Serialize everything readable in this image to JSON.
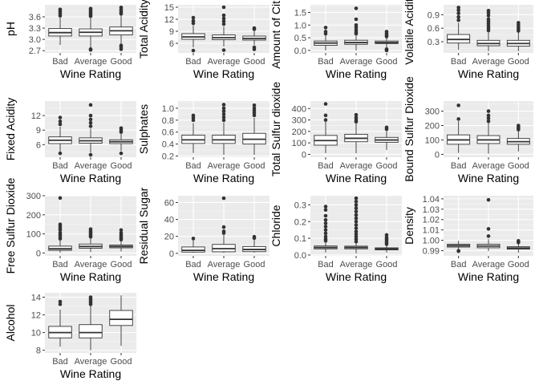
{
  "chart_data": [
    {
      "type": "box",
      "ylabel": "pH",
      "xlabel": "Wine Rating",
      "categories": [
        "Bad",
        "Average",
        "Good"
      ],
      "ylim": [
        2.64,
        3.92
      ],
      "yticks": [
        2.7,
        3.0,
        3.3,
        3.6
      ],
      "ytick_labels": [
        "2.7",
        "3.0",
        "3.3",
        "3.6"
      ],
      "boxes": [
        {
          "whisker_low": 2.85,
          "q1": 3.09,
          "median": 3.18,
          "q3": 3.29,
          "whisker_high": 3.58,
          "outliers": [
            3.63,
            3.69,
            3.75,
            3.8
          ]
        },
        {
          "whisker_low": 2.79,
          "q1": 3.09,
          "median": 3.19,
          "q3": 3.28,
          "whisker_high": 3.57,
          "outliers": [
            2.72,
            2.74,
            3.62,
            3.66,
            3.7,
            3.74,
            3.78,
            3.82
          ]
        },
        {
          "whisker_low": 2.88,
          "q1": 3.12,
          "median": 3.23,
          "q3": 3.33,
          "whisker_high": 3.64,
          "outliers": [
            2.74,
            2.8,
            2.84,
            3.68,
            3.72,
            3.76,
            3.8,
            3.85
          ]
        }
      ]
    },
    {
      "type": "box",
      "ylabel": "Total Acidity",
      "xlabel": "Wine Rating",
      "categories": [
        "Bad",
        "Average",
        "Good"
      ],
      "ylim": [
        3.6,
        15.6
      ],
      "yticks": [
        6,
        9,
        12,
        15
      ],
      "ytick_labels": [
        "6",
        "9",
        "12",
        "15"
      ],
      "boxes": [
        {
          "whisker_low": 5.0,
          "q1": 7.0,
          "median": 7.6,
          "q3": 8.4,
          "whisker_high": 10.5,
          "outliers": [
            4.2,
            11.0,
            11.6,
            12.4
          ]
        },
        {
          "whisker_low": 5.2,
          "q1": 6.9,
          "median": 7.4,
          "q3": 8.1,
          "whisker_high": 10.2,
          "outliers": [
            4.3,
            10.8,
            11.5,
            12.2,
            13.0,
            15.0
          ]
        },
        {
          "whisker_low": 5.6,
          "q1": 6.8,
          "median": 7.2,
          "q3": 7.8,
          "whisker_high": 9.0,
          "outliers": [
            4.5,
            5.0,
            9.5,
            9.8
          ]
        }
      ]
    },
    {
      "type": "box",
      "ylabel": "Amount of Citric",
      "xlabel": "Wine Rating",
      "categories": [
        "Bad",
        "Average",
        "Good"
      ],
      "ylim": [
        -0.1,
        1.8
      ],
      "yticks": [
        0.0,
        0.5,
        1.0,
        1.5
      ],
      "ytick_labels": [
        "0.0",
        "0.5",
        "1.0",
        "1.5"
      ],
      "boxes": [
        {
          "whisker_low": 0.0,
          "q1": 0.2,
          "median": 0.29,
          "q3": 0.37,
          "whisker_high": 0.6,
          "outliers": [
            0.66,
            0.74,
            0.9
          ]
        },
        {
          "whisker_low": 0.0,
          "q1": 0.24,
          "median": 0.31,
          "q3": 0.4,
          "whisker_high": 0.62,
          "outliers": [
            0.66,
            0.72,
            0.8,
            0.9,
            1.0,
            1.23,
            1.66
          ]
        },
        {
          "whisker_low": 0.09,
          "q1": 0.27,
          "median": 0.31,
          "q3": 0.37,
          "whisker_high": 0.5,
          "outliers": [
            0.0,
            0.02,
            0.05,
            0.55,
            0.6,
            0.66,
            0.74
          ]
        }
      ]
    },
    {
      "type": "box",
      "ylabel": "Volatile Acidity",
      "xlabel": "Wine Rating",
      "categories": [
        "Bad",
        "Average",
        "Good"
      ],
      "ylim": [
        0.05,
        1.12
      ],
      "yticks": [
        0.3,
        0.6,
        0.9
      ],
      "ytick_labels": [
        "0.3",
        "0.6",
        "0.9"
      ],
      "boxes": [
        {
          "whisker_low": 0.12,
          "q1": 0.27,
          "median": 0.35,
          "q3": 0.46,
          "whisker_high": 0.72,
          "outliers": [
            0.78,
            0.85,
            0.93,
            1.0,
            1.06
          ]
        },
        {
          "whisker_low": 0.09,
          "q1": 0.21,
          "median": 0.26,
          "q3": 0.33,
          "whisker_high": 0.52,
          "outliers": [
            0.55,
            0.6,
            0.65,
            0.7,
            0.75,
            0.8,
            0.88,
            0.94,
            0.99
          ]
        },
        {
          "whisker_low": 0.09,
          "q1": 0.2,
          "median": 0.26,
          "q3": 0.33,
          "whisker_high": 0.5,
          "outliers": [
            0.54,
            0.58,
            0.62,
            0.67,
            0.72
          ]
        }
      ]
    },
    {
      "type": "box",
      "ylabel": "Fixed Acidity",
      "xlabel": "Wine Rating",
      "categories": [
        "Bad",
        "Average",
        "Good"
      ],
      "ylim": [
        3.4,
        15.0
      ],
      "yticks": [
        6,
        9,
        12
      ],
      "ytick_labels": [
        "6",
        "9",
        "12"
      ],
      "boxes": [
        {
          "whisker_low": 4.6,
          "q1": 6.2,
          "median": 6.9,
          "q3": 7.6,
          "whisker_high": 9.7,
          "outliers": [
            4.2,
            10.2,
            10.8,
            11.6
          ]
        },
        {
          "whisker_low": 4.4,
          "q1": 6.3,
          "median": 6.8,
          "q3": 7.4,
          "whisker_high": 9.3,
          "outliers": [
            3.9,
            9.8,
            10.5,
            11.2,
            12.0,
            14.2
          ]
        },
        {
          "whisker_low": 4.7,
          "q1": 6.2,
          "median": 6.6,
          "q3": 7.0,
          "whisker_high": 8.2,
          "outliers": [
            4.2,
            8.6,
            9.0,
            9.4
          ]
        }
      ]
    },
    {
      "type": "box",
      "ylabel": "Sulphates",
      "xlabel": "Wine Rating",
      "categories": [
        "Bad",
        "Average",
        "Good"
      ],
      "ylim": [
        0.18,
        1.12
      ],
      "yticks": [
        0.2,
        0.4,
        0.6,
        0.8,
        1.0
      ],
      "ytick_labels": [
        "0.2",
        "0.4",
        "0.6",
        "0.8",
        "1.0"
      ],
      "boxes": [
        {
          "whisker_low": 0.25,
          "q1": 0.41,
          "median": 0.47,
          "q3": 0.55,
          "whisker_high": 0.75,
          "outliers": [
            0.8,
            0.84,
            0.88
          ]
        },
        {
          "whisker_low": 0.22,
          "q1": 0.41,
          "median": 0.47,
          "q3": 0.55,
          "whisker_high": 0.76,
          "outliers": [
            0.8,
            0.85,
            0.9,
            0.95,
            1.0,
            1.06
          ]
        },
        {
          "whisker_low": 0.22,
          "q1": 0.4,
          "median": 0.48,
          "q3": 0.58,
          "whisker_high": 0.84,
          "outliers": [
            0.88,
            0.92,
            0.96,
            1.0,
            1.05
          ]
        }
      ]
    },
    {
      "type": "box",
      "ylabel": "Total Sulfur dioxide",
      "xlabel": "Wine Rating",
      "categories": [
        "Bad",
        "Average",
        "Good"
      ],
      "ylim": [
        -25,
        465
      ],
      "yticks": [
        0,
        100,
        200,
        300,
        400
      ],
      "ytick_labels": [
        "0",
        "100",
        "200",
        "300",
        "400"
      ],
      "boxes": [
        {
          "whisker_low": 10,
          "q1": 80,
          "median": 120,
          "q3": 165,
          "whisker_high": 285,
          "outliers": [
            300,
            340,
            440
          ]
        },
        {
          "whisker_low": 10,
          "q1": 110,
          "median": 140,
          "q3": 175,
          "whisker_high": 270,
          "outliers": [
            285,
            300,
            320,
            345
          ]
        },
        {
          "whisker_low": 38,
          "q1": 105,
          "median": 125,
          "q3": 148,
          "whisker_high": 208,
          "outliers": [
            220,
            235
          ]
        }
      ]
    },
    {
      "type": "box",
      "ylabel": "Bound Sulfur Dioxide",
      "xlabel": "Wine Rating",
      "categories": [
        "Bad",
        "Average",
        "Good"
      ],
      "ylim": [
        -20,
        370
      ],
      "yticks": [
        0,
        100,
        200,
        300
      ],
      "ytick_labels": [
        "0",
        "100",
        "200",
        "300"
      ],
      "boxes": [
        {
          "whisker_low": 10,
          "q1": 70,
          "median": 100,
          "q3": 135,
          "whisker_high": 230,
          "outliers": [
            245,
            340
          ]
        },
        {
          "whisker_low": 5,
          "q1": 75,
          "median": 100,
          "q3": 130,
          "whisker_high": 220,
          "outliers": [
            230,
            250,
            270,
            300
          ]
        },
        {
          "whisker_low": 20,
          "q1": 70,
          "median": 88,
          "q3": 110,
          "whisker_high": 165,
          "outliers": [
            172,
            180,
            190,
            200
          ]
        }
      ]
    },
    {
      "type": "box",
      "ylabel": "Free Sulfur Dioxide",
      "xlabel": "Wine Rating",
      "categories": [
        "Bad",
        "Average",
        "Good"
      ],
      "ylim": [
        -15,
        300
      ],
      "yticks": [
        0,
        100,
        200,
        300
      ],
      "ytick_labels": [
        "0",
        "100",
        "200",
        "300"
      ],
      "boxes": [
        {
          "whisker_low": 2,
          "q1": 14,
          "median": 22,
          "q3": 36,
          "whisker_high": 68,
          "outliers": [
            75,
            85,
            95,
            105,
            120,
            130,
            140,
            150,
            288
          ]
        },
        {
          "whisker_low": 5,
          "q1": 25,
          "median": 34,
          "q3": 47,
          "whisker_high": 80,
          "outliers": [
            85,
            92,
            100,
            108,
            115,
            125
          ]
        },
        {
          "whisker_low": 8,
          "q1": 27,
          "median": 34,
          "q3": 42,
          "whisker_high": 63,
          "outliers": [
            70,
            78,
            85,
            95,
            105,
            120
          ]
        }
      ]
    },
    {
      "type": "box",
      "ylabel": "Residual Sugar",
      "xlabel": "Wine Rating",
      "categories": [
        "Bad",
        "Average",
        "Good"
      ],
      "ylim": [
        -3,
        68
      ],
      "yticks": [
        0,
        20,
        40,
        60
      ],
      "ytick_labels": [
        "0",
        "20",
        "40",
        "60"
      ],
      "boxes": [
        {
          "whisker_low": 0.7,
          "q1": 1.5,
          "median": 3.5,
          "q3": 7.5,
          "whisker_high": 15.5,
          "outliers": [
            17.5
          ]
        },
        {
          "whisker_low": 0.6,
          "q1": 1.8,
          "median": 5.5,
          "q3": 10.5,
          "whisker_high": 22,
          "outliers": [
            24,
            26,
            31,
            65
          ]
        },
        {
          "whisker_low": 0.8,
          "q1": 2.0,
          "median": 4.5,
          "q3": 8.0,
          "whisker_high": 16,
          "outliers": [
            18,
            19.5
          ]
        }
      ]
    },
    {
      "type": "box",
      "ylabel": "Chloride",
      "xlabel": "Wine Rating",
      "categories": [
        "Bad",
        "Average",
        "Good"
      ],
      "ylim": [
        -0.005,
        0.355
      ],
      "yticks": [
        0.0,
        0.1,
        0.2,
        0.3
      ],
      "ytick_labels": [
        "0.0",
        "0.1",
        "0.2",
        "0.3"
      ],
      "boxes": [
        {
          "whisker_low": 0.015,
          "q1": 0.037,
          "median": 0.045,
          "q3": 0.054,
          "whisker_high": 0.078,
          "outliers": [
            0.085,
            0.095,
            0.11,
            0.13,
            0.15,
            0.17,
            0.19,
            0.21,
            0.235,
            0.27,
            0.29
          ]
        },
        {
          "whisker_low": 0.01,
          "q1": 0.037,
          "median": 0.045,
          "q3": 0.053,
          "whisker_high": 0.076,
          "outliers": [
            0.08,
            0.095,
            0.11,
            0.125,
            0.14,
            0.16,
            0.18,
            0.2,
            0.22,
            0.24,
            0.26,
            0.28,
            0.3,
            0.32,
            0.34
          ]
        },
        {
          "whisker_low": 0.015,
          "q1": 0.031,
          "median": 0.036,
          "q3": 0.043,
          "whisker_high": 0.06,
          "outliers": [
            0.065,
            0.075,
            0.085,
            0.095,
            0.105,
            0.12
          ]
        }
      ]
    },
    {
      "type": "box",
      "ylabel": "Density",
      "xlabel": "Wine Rating",
      "categories": [
        "Bad",
        "Average",
        "Good"
      ],
      "ylim": [
        0.985,
        1.043
      ],
      "yticks": [
        0.99,
        1.0,
        1.01,
        1.02,
        1.03,
        1.04
      ],
      "ytick_labels": [
        "0.99",
        "1.00",
        "1.01",
        "1.02",
        "1.03",
        "1.04"
      ],
      "boxes": [
        {
          "whisker_low": 0.9915,
          "q1": 0.9935,
          "median": 0.9948,
          "q3": 0.9962,
          "whisker_high": 0.9995,
          "outliers": [
            0.9895,
            0.9898
          ]
        },
        {
          "whisker_low": 0.9895,
          "q1": 0.9928,
          "median": 0.9945,
          "q3": 0.9962,
          "whisker_high": 1.001,
          "outliers": [
            1.004,
            1.011,
            1.039
          ]
        },
        {
          "whisker_low": 0.988,
          "q1": 0.9915,
          "median": 0.9925,
          "q3": 0.9938,
          "whisker_high": 0.997,
          "outliers": [
            0.998,
            0.9995
          ]
        }
      ]
    },
    {
      "type": "box",
      "ylabel": "Alcohol",
      "xlabel": "Wine Rating",
      "categories": [
        "Bad",
        "Average",
        "Good"
      ],
      "ylim": [
        7.7,
        14.5
      ],
      "yticks": [
        8,
        10,
        12,
        14
      ],
      "ytick_labels": [
        "8",
        "10",
        "12",
        "14"
      ],
      "boxes": [
        {
          "whisker_low": 8.4,
          "q1": 9.4,
          "median": 10.0,
          "q3": 10.7,
          "whisker_high": 12.6,
          "outliers": [
            13.2,
            13.5
          ]
        },
        {
          "whisker_low": 8.0,
          "q1": 9.4,
          "median": 10.0,
          "q3": 10.9,
          "whisker_high": 13.0,
          "outliers": [
            13.2,
            13.4,
            13.6,
            13.8,
            14.0
          ]
        },
        {
          "whisker_low": 8.5,
          "q1": 10.8,
          "median": 11.5,
          "q3": 12.5,
          "whisker_high": 14.2,
          "outliers": []
        }
      ]
    }
  ]
}
